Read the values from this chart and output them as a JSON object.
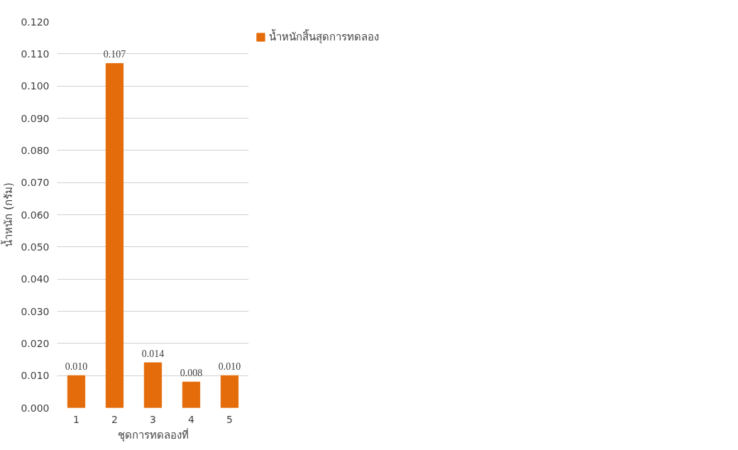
{
  "chart_data": {
    "type": "bar",
    "xlabel": "ชุดการทดลองที่",
    "ylabel": "น้ำหนัก (กรัม)",
    "categories": [
      "1",
      "2",
      "3",
      "4",
      "5"
    ],
    "series": [
      {
        "name": "น้ำหนักสิ้นสุดการทดลอง",
        "color": "#e46c0a",
        "values": [
          0.01,
          0.107,
          0.014,
          0.008,
          0.01
        ],
        "value_labels": [
          "0.010",
          "0.107",
          "0.014",
          "0.008",
          "0.010"
        ]
      }
    ],
    "ylim": [
      0,
      0.12
    ],
    "yticks": [
      {
        "value": 0,
        "label": "0.000"
      },
      {
        "value": 0.01,
        "label": "0.010"
      },
      {
        "value": 0.02,
        "label": "0.020"
      },
      {
        "value": 0.03,
        "label": "0.030"
      },
      {
        "value": 0.04,
        "label": "0.040"
      },
      {
        "value": 0.05,
        "label": "0.050"
      },
      {
        "value": 0.06,
        "label": "0.060"
      },
      {
        "value": 0.07,
        "label": "0.070"
      },
      {
        "value": 0.08,
        "label": "0.080"
      },
      {
        "value": 0.09,
        "label": "0.090"
      },
      {
        "value": 0.1,
        "label": "0.100"
      },
      {
        "value": 0.11,
        "label": "0.110"
      },
      {
        "value": 0.12,
        "label": "0.120"
      }
    ],
    "grid": "y",
    "legend": "right"
  }
}
